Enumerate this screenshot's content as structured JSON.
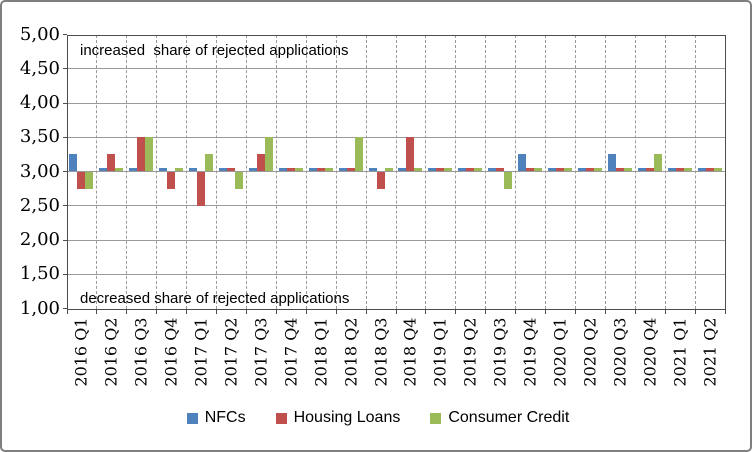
{
  "annotations": {
    "top": "increased  share of rejected applications",
    "bottom": "decreased share of rejected applications"
  },
  "chart_data": {
    "type": "bar",
    "title": "",
    "xlabel": "",
    "ylabel": "",
    "ylim": [
      1.0,
      5.0
    ],
    "ytick_step": 0.5,
    "ytick_labels": [
      "5,00",
      "4,50",
      "4,00",
      "3,50",
      "3,00",
      "2,50",
      "2,00",
      "1,50",
      "1,00"
    ],
    "baseline": 3.0,
    "grid": true,
    "legend_position": "bottom",
    "annotation_top": "increased  share of rejected applications",
    "annotation_bottom": "decreased share of rejected applications",
    "categories": [
      "2016 Q1",
      "2016 Q2",
      "2016 Q3",
      "2016 Q4",
      "2017 Q1",
      "2017 Q2",
      "2017 Q3",
      "2017 Q4",
      "2018 Q1",
      "2018 Q2",
      "2018 Q3",
      "2018 Q4",
      "2019 Q1",
      "2019 Q2",
      "2019 Q3",
      "2019 Q4",
      "2020 Q1",
      "2020 Q2",
      "2020 Q3",
      "2020 Q4",
      "2021 Q1",
      "2021 Q2"
    ],
    "series": [
      {
        "name": "NFCs",
        "color": "#4F81BD",
        "values": [
          3.25,
          3.05,
          3.05,
          3.05,
          3.05,
          3.05,
          3.05,
          3.05,
          3.05,
          3.05,
          3.05,
          3.05,
          3.05,
          3.05,
          3.05,
          3.25,
          3.05,
          3.05,
          3.25,
          3.05,
          3.05,
          3.05
        ]
      },
      {
        "name": "Housing Loans",
        "color": "#C0504D",
        "values": [
          2.75,
          3.25,
          3.5,
          2.75,
          2.5,
          3.05,
          3.25,
          3.05,
          3.05,
          3.05,
          2.75,
          3.5,
          3.05,
          3.05,
          3.05,
          3.05,
          3.05,
          3.05,
          3.05,
          3.05,
          3.05,
          3.05
        ]
      },
      {
        "name": "Consumer Credit",
        "color": "#9BBB59",
        "values": [
          2.75,
          3.05,
          3.5,
          3.05,
          3.25,
          2.75,
          3.5,
          3.05,
          3.05,
          3.5,
          3.05,
          3.05,
          3.05,
          3.05,
          2.75,
          3.05,
          3.05,
          3.05,
          3.05,
          3.25,
          3.05,
          3.05
        ]
      }
    ]
  }
}
